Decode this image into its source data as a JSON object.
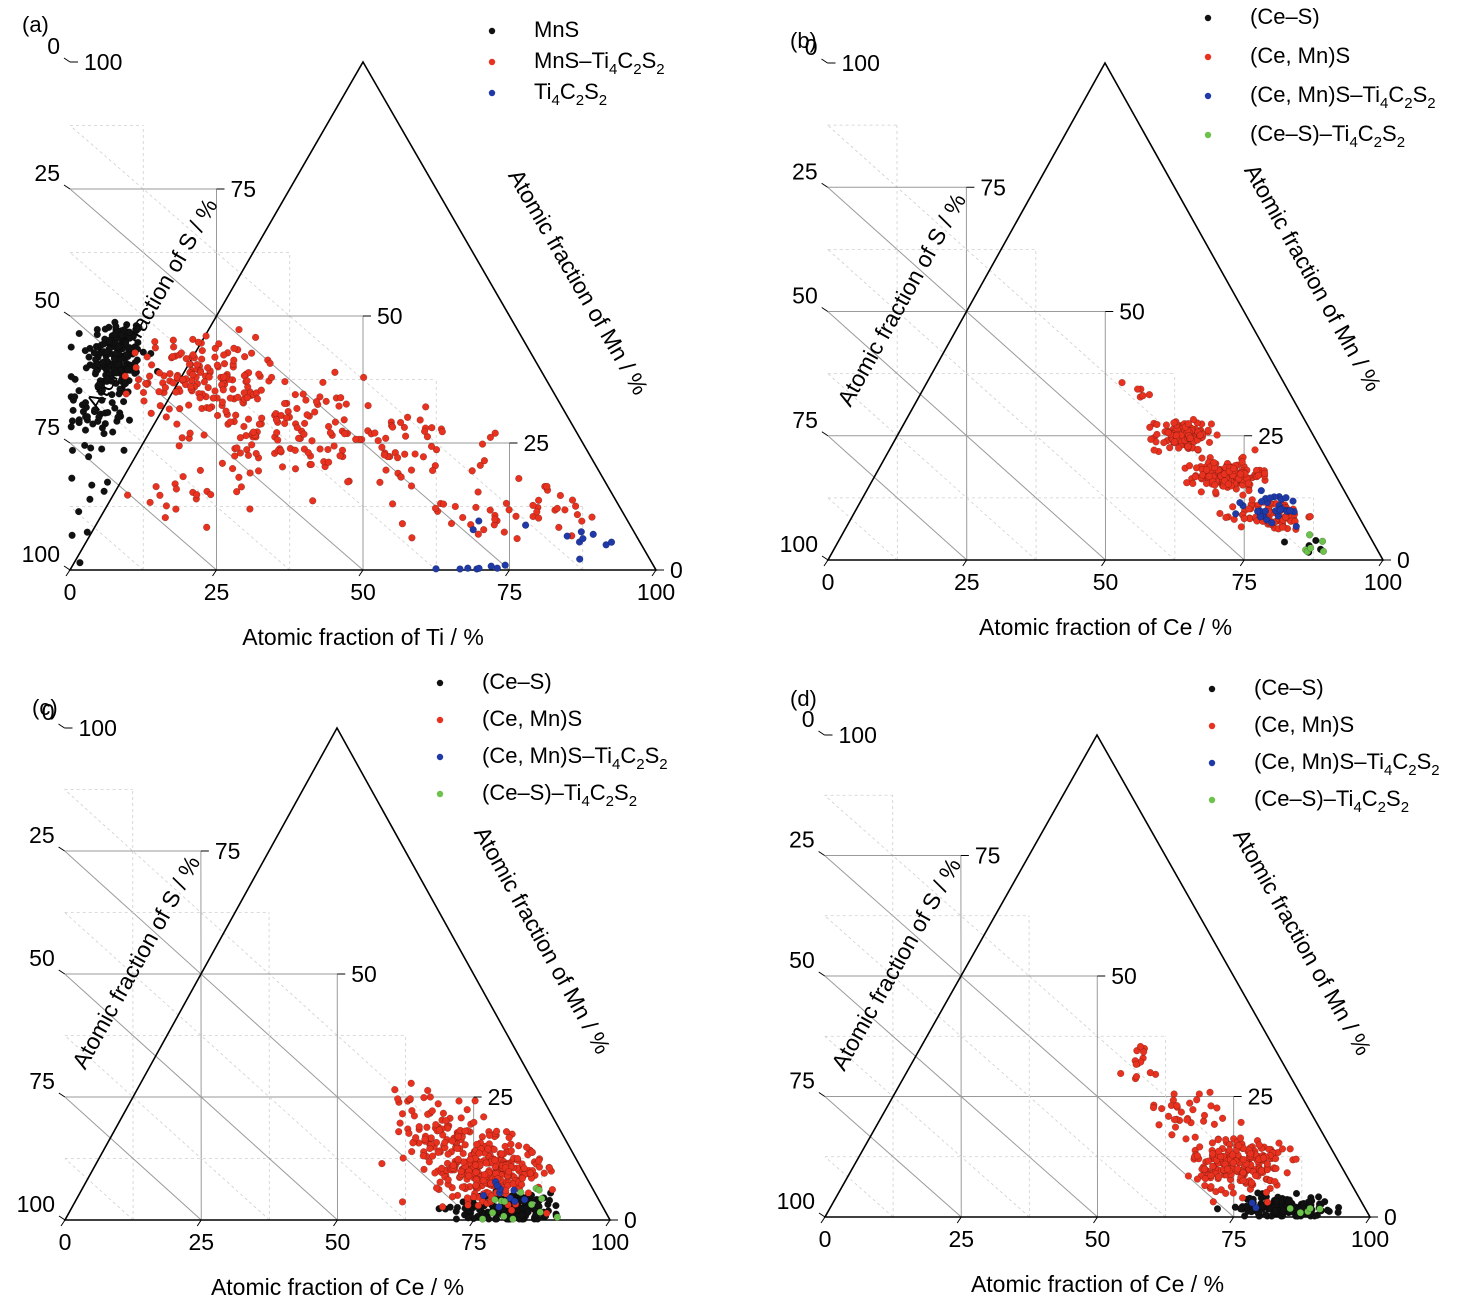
{
  "colors": {
    "black_marker": "#111111",
    "red_marker": "#e8311e",
    "blue_marker": "#1f3aa8",
    "green_marker": "#6cc24a",
    "grid_major": "#9a9a9a",
    "grid_minor": "#cfcfcf",
    "frame": "#000000"
  },
  "chart_data": [
    {
      "type": "scatter",
      "subtype": "ternary",
      "panel_label": "(a)",
      "axes": {
        "bottom": {
          "label": "Atomic fraction of Ti / %",
          "ticks": [
            "0",
            "25",
            "50",
            "75",
            "100"
          ]
        },
        "left": {
          "label": "Atomic fraction of S / %",
          "ticks": [
            "0",
            "25",
            "50",
            "75",
            "100"
          ]
        },
        "right": {
          "label": "Atomic fraction of Mn / %",
          "ticks": [
            "0",
            "25",
            "50",
            "75",
            "100"
          ]
        }
      },
      "legend": [
        {
          "name": "MnS",
          "formula": [
            [
              "MnS",
              ""
            ]
          ],
          "color": "black"
        },
        {
          "name": "MnS–Ti4C2S2",
          "formula": [
            [
              "MnS–Ti",
              ""
            ],
            [
              "4",
              "sub"
            ],
            [
              "C",
              ""
            ],
            [
              "2",
              "sub"
            ],
            [
              "S",
              ""
            ],
            [
              "2",
              "sub"
            ]
          ],
          "color": "red"
        },
        {
          "name": "Ti4C2S2",
          "formula": [
            [
              "Ti",
              ""
            ],
            [
              "4",
              "sub"
            ],
            [
              "C",
              ""
            ],
            [
              "2",
              "sub"
            ],
            [
              "S",
              ""
            ],
            [
              "2",
              "sub"
            ]
          ],
          "color": "blue"
        }
      ],
      "series": [
        {
          "name": "MnS",
          "color": "black",
          "clusters": [
            {
              "ti": 8,
              "mn": 42,
              "sd_ti": 2.5,
              "sd_mn": 4,
              "n": 160
            },
            {
              "ti": 5,
              "mn": 32,
              "sd_ti": 3,
              "sd_mn": 6,
              "n": 70
            },
            {
              "ti": 3,
              "mn": 15,
              "sd_ti": 2,
              "sd_mn": 7,
              "n": 8
            }
          ]
        },
        {
          "name": "MnS–Ti4C2S2",
          "color": "red",
          "clusters": [
            {
              "ti": 22,
              "mn": 38,
              "sd_ti": 5,
              "sd_mn": 4,
              "n": 140
            },
            {
              "ti": 35,
              "mn": 28,
              "sd_ti": 7,
              "sd_mn": 5,
              "n": 110
            },
            {
              "ti": 55,
              "mn": 24,
              "sd_ti": 8,
              "sd_mn": 4,
              "n": 70
            },
            {
              "ti": 75,
              "mn": 12,
              "sd_ti": 8,
              "sd_mn": 3,
              "n": 45
            },
            {
              "ti": 22,
              "mn": 15,
              "sd_ti": 6,
              "sd_mn": 3,
              "n": 20
            }
          ]
        },
        {
          "name": "Ti4C2S2",
          "color": "blue",
          "clusters": [
            {
              "ti": 88,
              "mn": 6,
              "sd_ti": 2,
              "sd_mn": 1,
              "n": 8
            },
            {
              "ti": 70,
              "mn": 0.5,
              "sd_ti": 3,
              "sd_mn": 0.3,
              "n": 8
            },
            {
              "ti": 69,
              "mn": 9,
              "sd_ti": 3,
              "sd_mn": 1,
              "n": 3
            }
          ]
        }
      ]
    },
    {
      "type": "scatter",
      "subtype": "ternary",
      "panel_label": "(b)",
      "axes": {
        "bottom": {
          "label": "Atomic fraction of Ce / %",
          "ticks": [
            "0",
            "25",
            "50",
            "75",
            "100"
          ]
        },
        "left": {
          "label": "Atomic fraction of S / %",
          "ticks": [
            "0",
            "25",
            "50",
            "75",
            "100"
          ]
        },
        "right": {
          "label": "Atomic fraction of Mn / %",
          "ticks": [
            "0",
            "25",
            "50",
            "75",
            "100"
          ]
        }
      },
      "legend": [
        {
          "name": "(Ce–S)",
          "formula": [
            [
              "(Ce–S)",
              ""
            ]
          ],
          "color": "black"
        },
        {
          "name": "(Ce, Mn)S",
          "formula": [
            [
              "(Ce, Mn)S",
              ""
            ]
          ],
          "color": "red"
        },
        {
          "name": "(Ce, Mn)S–Ti4C2S2",
          "formula": [
            [
              "(Ce, Mn)S–Ti",
              ""
            ],
            [
              "4",
              "sub"
            ],
            [
              "C",
              ""
            ],
            [
              "2",
              "sub"
            ],
            [
              "S",
              ""
            ],
            [
              "2",
              "sub"
            ]
          ],
          "color": "blue"
        },
        {
          "name": "(Ce–S)–Ti4C2S2",
          "formula": [
            [
              "(Ce–S)–Ti",
              ""
            ],
            [
              "4",
              "sub"
            ],
            [
              "C",
              ""
            ],
            [
              "2",
              "sub"
            ],
            [
              "S",
              ""
            ],
            [
              "2",
              "sub"
            ]
          ],
          "color": "green"
        }
      ],
      "series": [
        {
          "name": "(Ce–S)",
          "color": "black",
          "clusters": [
            {
              "ti": 87,
              "mn": 3,
              "sd_ti": 2,
              "sd_mn": 1,
              "n": 5
            }
          ]
        },
        {
          "name": "(Ce, Mn)S",
          "color": "red",
          "clusters": [
            {
              "ti": 64,
              "mn": 25,
              "sd_ti": 2.5,
              "sd_mn": 1.5,
              "n": 120
            },
            {
              "ti": 72,
              "mn": 17,
              "sd_ti": 3,
              "sd_mn": 1.5,
              "n": 160
            },
            {
              "ti": 80,
              "mn": 9,
              "sd_ti": 3,
              "sd_mn": 1.5,
              "n": 90
            },
            {
              "ti": 56,
              "mn": 34,
              "sd_ti": 1.5,
              "sd_mn": 1.5,
              "n": 6
            }
          ]
        },
        {
          "name": "(Ce, Mn)S–Ti4C2S2",
          "color": "blue",
          "clusters": [
            {
              "ti": 80,
              "mn": 10,
              "sd_ti": 4,
              "sd_mn": 2,
              "n": 30
            }
          ]
        },
        {
          "name": "(Ce–S)–Ti4C2S2",
          "color": "green",
          "clusters": [
            {
              "ti": 88,
              "mn": 3,
              "sd_ti": 2,
              "sd_mn": 1,
              "n": 6
            }
          ]
        }
      ]
    },
    {
      "type": "scatter",
      "subtype": "ternary",
      "panel_label": "(c)",
      "axes": {
        "bottom": {
          "label": "Atomic fraction of Ce / %",
          "ticks": [
            "0",
            "25",
            "50",
            "75",
            "100"
          ]
        },
        "left": {
          "label": "Atomic fraction of S / %",
          "ticks": [
            "0",
            "25",
            "50",
            "75",
            "100"
          ]
        },
        "right": {
          "label": "Atomic fraction of Mn / %",
          "ticks": [
            "0",
            "25",
            "50",
            "75",
            "100"
          ]
        }
      },
      "legend": [
        {
          "name": "(Ce–S)",
          "formula": [
            [
              "(Ce–S)",
              ""
            ]
          ],
          "color": "black"
        },
        {
          "name": "(Ce, Mn)S",
          "formula": [
            [
              "(Ce, Mn)S",
              ""
            ]
          ],
          "color": "red"
        },
        {
          "name": "(Ce, Mn)S–Ti4C2S2",
          "formula": [
            [
              "(Ce, Mn)S–Ti",
              ""
            ],
            [
              "4",
              "sub"
            ],
            [
              "C",
              ""
            ],
            [
              "2",
              "sub"
            ],
            [
              "S",
              ""
            ],
            [
              "2",
              "sub"
            ]
          ],
          "color": "blue"
        },
        {
          "name": "(Ce–S)–Ti4C2S2",
          "formula": [
            [
              "(Ce–S)–Ti",
              ""
            ],
            [
              "4",
              "sub"
            ],
            [
              "C",
              ""
            ],
            [
              "2",
              "sub"
            ],
            [
              "S",
              ""
            ],
            [
              "2",
              "sub"
            ]
          ],
          "color": "green"
        }
      ],
      "series": [
        {
          "name": "(Ce–S)",
          "color": "black",
          "clusters": [
            {
              "ti": 82,
              "mn": 2.5,
              "sd_ti": 5,
              "sd_mn": 1.5,
              "n": 160
            }
          ]
        },
        {
          "name": "(Ce, Mn)S",
          "color": "red",
          "clusters": [
            {
              "ti": 78,
              "mn": 10,
              "sd_ti": 5,
              "sd_mn": 3,
              "n": 280
            },
            {
              "ti": 70,
              "mn": 17,
              "sd_ti": 4,
              "sd_mn": 3,
              "n": 80
            },
            {
              "ti": 65,
              "mn": 25,
              "sd_ti": 3,
              "sd_mn": 2,
              "n": 15
            }
          ]
        },
        {
          "name": "(Ce, Mn)S–Ti4C2S2",
          "color": "blue",
          "clusters": [
            {
              "ti": 80,
              "mn": 5,
              "sd_ti": 3,
              "sd_mn": 2,
              "n": 10
            }
          ]
        },
        {
          "name": "(Ce–S)–Ti4C2S2",
          "color": "green",
          "clusters": [
            {
              "ti": 83,
              "mn": 3,
              "sd_ti": 4,
              "sd_mn": 2,
              "n": 14
            }
          ]
        }
      ]
    },
    {
      "type": "scatter",
      "subtype": "ternary",
      "panel_label": "(d)",
      "axes": {
        "bottom": {
          "label": "Atomic fraction of Ce / %",
          "ticks": [
            "0",
            "25",
            "50",
            "75",
            "100"
          ]
        },
        "left": {
          "label": "Atomic fraction of S / %",
          "ticks": [
            "0",
            "25",
            "50",
            "75",
            "100"
          ]
        },
        "right": {
          "label": "Atomic fraction of Mn / %",
          "ticks": [
            "0",
            "25",
            "50",
            "75",
            "100"
          ]
        }
      },
      "legend": [
        {
          "name": "(Ce–S)",
          "formula": [
            [
              "(Ce–S)",
              ""
            ]
          ],
          "color": "black"
        },
        {
          "name": "(Ce, Mn)S",
          "formula": [
            [
              "(Ce, Mn)S",
              ""
            ]
          ],
          "color": "red"
        },
        {
          "name": "(Ce, Mn)S–Ti4C2S2",
          "formula": [
            [
              "(Ce, Mn)S–Ti",
              ""
            ],
            [
              "4",
              "sub"
            ],
            [
              "C",
              ""
            ],
            [
              "2",
              "sub"
            ],
            [
              "S",
              ""
            ],
            [
              "2",
              "sub"
            ]
          ],
          "color": "blue"
        },
        {
          "name": "(Ce–S)–Ti4C2S2",
          "formula": [
            [
              "(Ce–S)–Ti",
              ""
            ],
            [
              "4",
              "sub"
            ],
            [
              "C",
              ""
            ],
            [
              "2",
              "sub"
            ],
            [
              "S",
              ""
            ],
            [
              "2",
              "sub"
            ]
          ],
          "color": "green"
        }
      ],
      "series": [
        {
          "name": "(Ce–S)",
          "color": "black",
          "clusters": [
            {
              "ti": 84,
              "mn": 2,
              "sd_ti": 4,
              "sd_mn": 1.2,
              "n": 140
            }
          ]
        },
        {
          "name": "(Ce, Mn)S",
          "color": "red",
          "clusters": [
            {
              "ti": 76,
              "mn": 11,
              "sd_ti": 4,
              "sd_mn": 3,
              "n": 220
            },
            {
              "ti": 66,
              "mn": 22,
              "sd_ti": 3,
              "sd_mn": 2,
              "n": 30
            },
            {
              "ti": 58,
              "mn": 32,
              "sd_ti": 2,
              "sd_mn": 2,
              "n": 14
            }
          ]
        },
        {
          "name": "(Ce, Mn)S–Ti4C2S2",
          "color": "blue",
          "clusters": [
            {
              "ti": 78,
              "mn": 3,
              "sd_ti": 1,
              "sd_mn": 1,
              "n": 2
            }
          ]
        },
        {
          "name": "(Ce–S)–Ti4C2S2",
          "color": "green",
          "clusters": [
            {
              "ti": 88,
              "mn": 2,
              "sd_ti": 2,
              "sd_mn": 1,
              "n": 5
            }
          ]
        }
      ]
    }
  ]
}
